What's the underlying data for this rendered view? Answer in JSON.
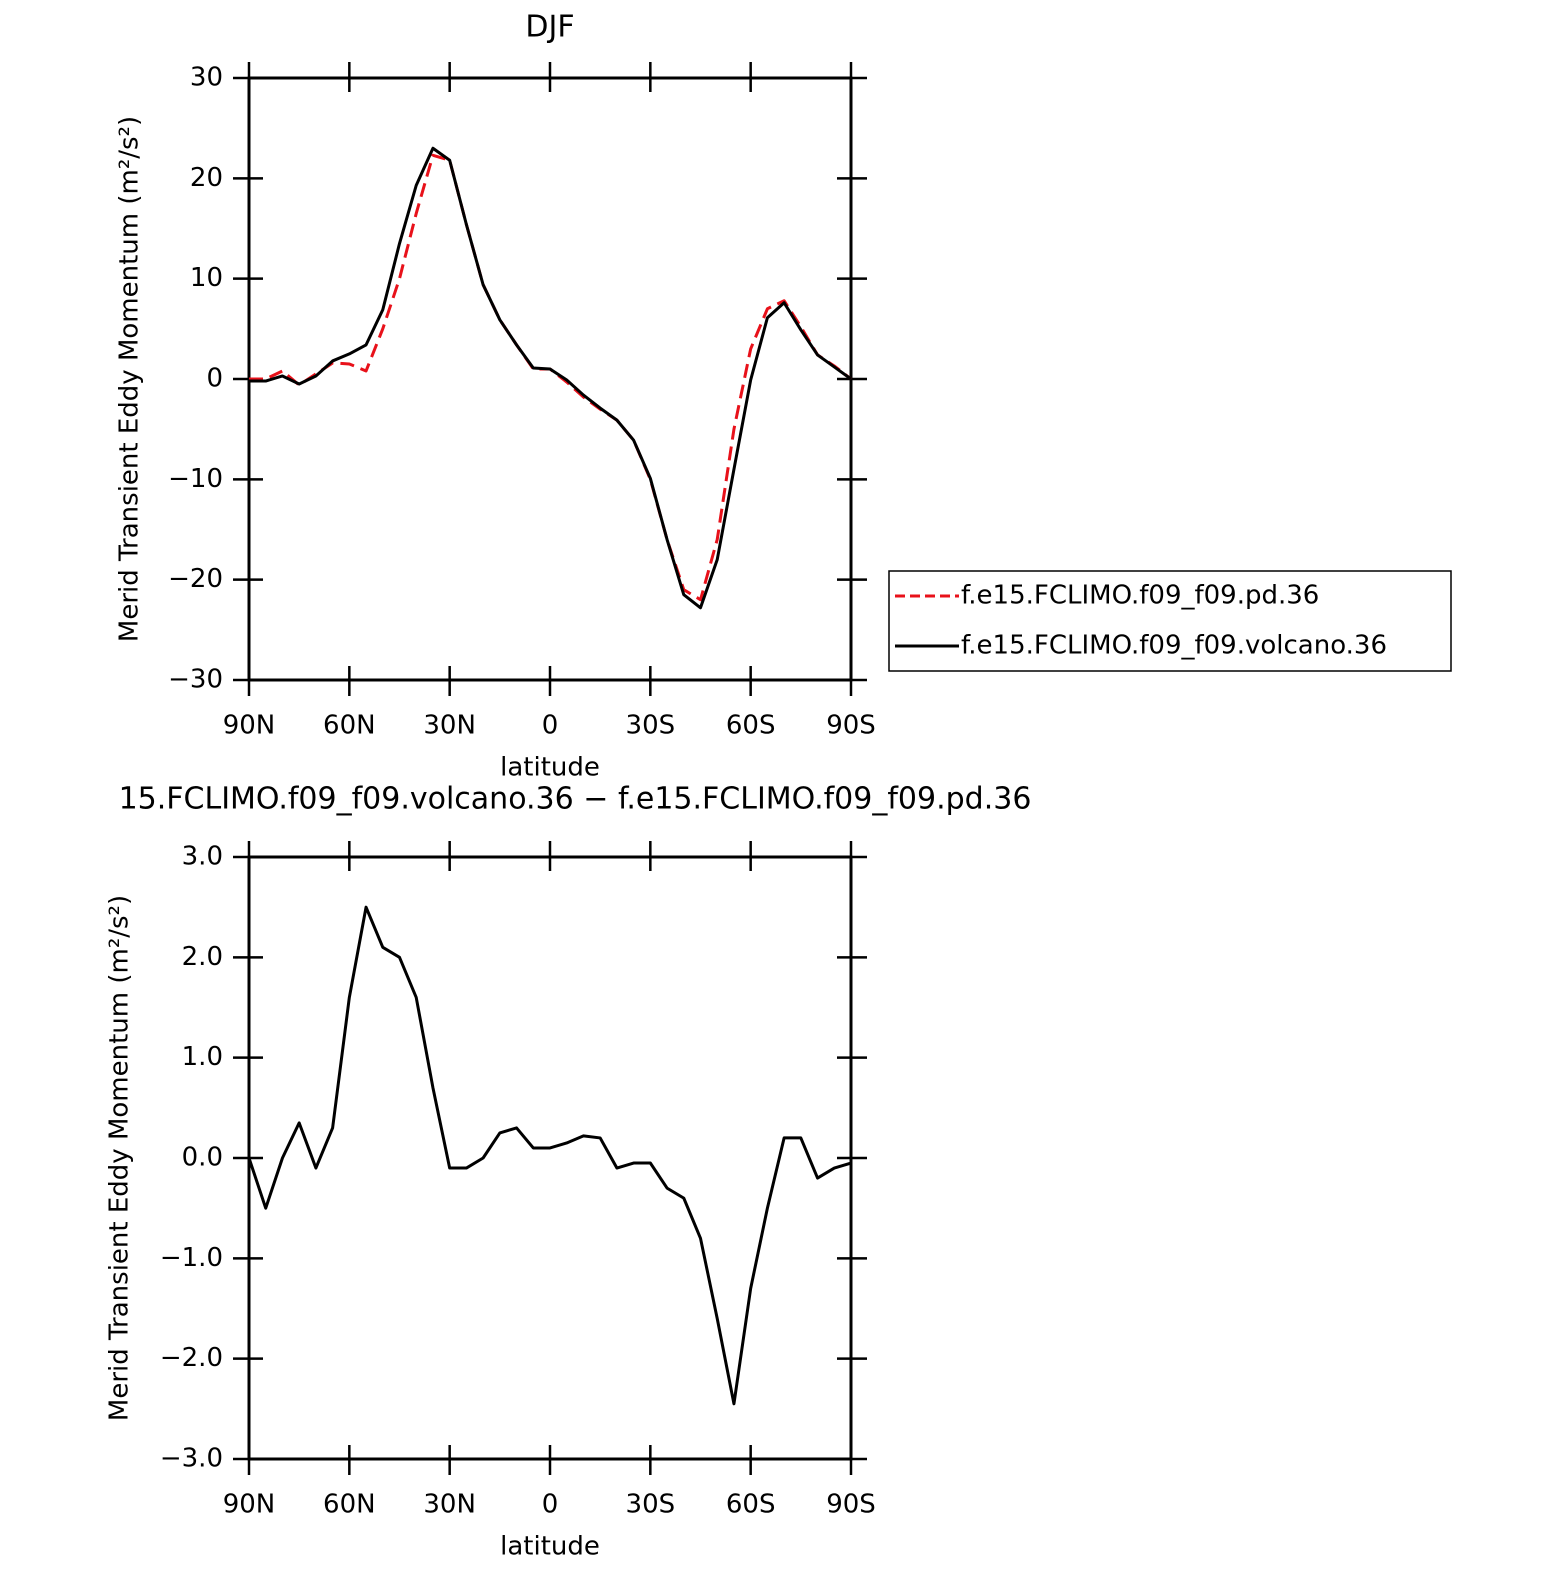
{
  "chart_data": [
    {
      "type": "line",
      "title": "DJF",
      "x_label": "latitude",
      "y_label": "Merid Transient Eddy Momentum (m²/s²)",
      "x": [
        90,
        85,
        80,
        75,
        70,
        65,
        60,
        55,
        50,
        45,
        40,
        35,
        30,
        25,
        20,
        15,
        10,
        5,
        0,
        -5,
        -10,
        -15,
        -20,
        -25,
        -30,
        -35,
        -40,
        -45,
        -50,
        -55,
        -60,
        -65,
        -70,
        -75,
        -80,
        -85,
        -90
      ],
      "xlim": [
        90,
        -90
      ],
      "xticks": [
        {
          "value": 90,
          "label": "90N"
        },
        {
          "value": 60,
          "label": "60N"
        },
        {
          "value": 30,
          "label": "30N"
        },
        0,
        {
          "value": -30,
          "label": "30S"
        },
        {
          "value": -60,
          "label": "60S"
        },
        {
          "value": -90,
          "label": "90S"
        }
      ],
      "ylim": [
        -30,
        30
      ],
      "yticks": [
        {
          "value": -30,
          "label": "−30"
        },
        {
          "value": -20,
          "label": "−20"
        },
        {
          "value": -10,
          "label": "−10"
        },
        0,
        10,
        20,
        30
      ],
      "legend": "right",
      "series": [
        {
          "name": "f.e15.FCLIMO.f09_f09.pd.36",
          "color": "#e8111a",
          "dashed": true,
          "values": [
            0,
            0,
            0.8,
            -0.6,
            0.5,
            1.6,
            1.5,
            0.8,
            5,
            10,
            16.5,
            22.3,
            21.8,
            15.4,
            9.4,
            5.9,
            3.4,
            1.0,
            1.0,
            -0.3,
            -1.8,
            -3,
            -4.1,
            -6.1,
            -10,
            -16,
            -21,
            -22,
            -16,
            -5,
            3,
            7,
            7.8,
            5.2,
            2.4,
            1.3,
            0
          ]
        },
        {
          "name": "f.e15.FCLIMO.f09_f09.volcano.36",
          "color": "#000000",
          "dashed": false,
          "values": [
            -0.2,
            -0.2,
            0.3,
            -0.5,
            0.3,
            1.8,
            2.5,
            3.4,
            6.9,
            13.5,
            19.3,
            23,
            21.8,
            15.4,
            9.4,
            5.9,
            3.4,
            1.1,
            1.0,
            -0.1,
            -1.6,
            -2.9,
            -4.1,
            -6.1,
            -9.9,
            -16,
            -21.5,
            -22.8,
            -18,
            -9,
            -0.1,
            6.1,
            7.6,
            4.9,
            2.4,
            1.2,
            0
          ]
        }
      ]
    },
    {
      "type": "line",
      "title": "15.FCLIMO.f09_f09.volcano.36 − f.e15.FCLIMO.f09_f09.pd.36",
      "x_label": "latitude",
      "y_label": "Merid Transient Eddy Momentum (m²/s²)",
      "x": [
        90,
        85,
        80,
        75,
        70,
        65,
        60,
        55,
        50,
        45,
        40,
        35,
        30,
        25,
        20,
        15,
        10,
        5,
        0,
        -5,
        -10,
        -15,
        -20,
        -25,
        -30,
        -35,
        -40,
        -45,
        -50,
        -55,
        -60,
        -65,
        -70,
        -75,
        -80,
        -85,
        -90
      ],
      "xlim": [
        90,
        -90
      ],
      "xticks": [
        {
          "value": 90,
          "label": "90N"
        },
        {
          "value": 60,
          "label": "60N"
        },
        {
          "value": 30,
          "label": "30N"
        },
        0,
        {
          "value": -30,
          "label": "30S"
        },
        {
          "value": -60,
          "label": "60S"
        },
        {
          "value": -90,
          "label": "90S"
        }
      ],
      "ylim": [
        -3,
        3
      ],
      "yticks": [
        {
          "value": -3,
          "label": "−3.0"
        },
        {
          "value": -2,
          "label": "−2.0"
        },
        {
          "value": -1,
          "label": "−1.0"
        },
        {
          "value": 0,
          "label": "0.0"
        },
        {
          "value": 1,
          "label": "1.0"
        },
        {
          "value": 2,
          "label": "2.0"
        },
        {
          "value": 3,
          "label": "3.0"
        }
      ],
      "series": [
        {
          "color": "#000000",
          "dashed": false,
          "values": [
            0,
            -0.5,
            0.0,
            0.35,
            -0.1,
            0.3,
            1.6,
            2.5,
            2.1,
            2.0,
            1.6,
            0.7,
            -0.1,
            -0.1,
            0.0,
            0.25,
            0.3,
            0.1,
            0.1,
            0.15,
            0.22,
            0.2,
            -0.1,
            -0.05,
            -0.05,
            -0.3,
            -0.4,
            -0.8,
            -1.6,
            -2.45,
            -1.3,
            -0.5,
            0.2,
            0.2,
            -0.2,
            -0.1,
            -0.05
          ]
        }
      ]
    }
  ]
}
